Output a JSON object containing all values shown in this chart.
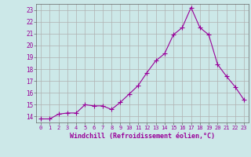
{
  "x": [
    0,
    1,
    2,
    3,
    4,
    5,
    6,
    7,
    8,
    9,
    10,
    11,
    12,
    13,
    14,
    15,
    16,
    17,
    18,
    19,
    20,
    21,
    22,
    23
  ],
  "y": [
    13.8,
    13.8,
    14.2,
    14.3,
    14.3,
    15.0,
    14.9,
    14.9,
    14.6,
    15.2,
    15.9,
    16.6,
    17.7,
    18.7,
    19.3,
    20.9,
    21.5,
    23.2,
    21.5,
    20.9,
    18.4,
    17.4,
    16.5,
    15.4
  ],
  "line_color": "#990099",
  "marker": "+",
  "marker_size": 3,
  "bg_color": "#cce8e8",
  "grid_color": "#b0b0b0",
  "xlabel": "Windchill (Refroidissement éolien,°C)",
  "xlabel_color": "#990099",
  "tick_color": "#990099",
  "ylim": [
    13.5,
    23.5
  ],
  "xlim": [
    -0.5,
    23.5
  ],
  "yticks": [
    14,
    15,
    16,
    17,
    18,
    19,
    20,
    21,
    22,
    23
  ],
  "xticks": [
    0,
    1,
    2,
    3,
    4,
    5,
    6,
    7,
    8,
    9,
    10,
    11,
    12,
    13,
    14,
    15,
    16,
    17,
    18,
    19,
    20,
    21,
    22,
    23
  ]
}
